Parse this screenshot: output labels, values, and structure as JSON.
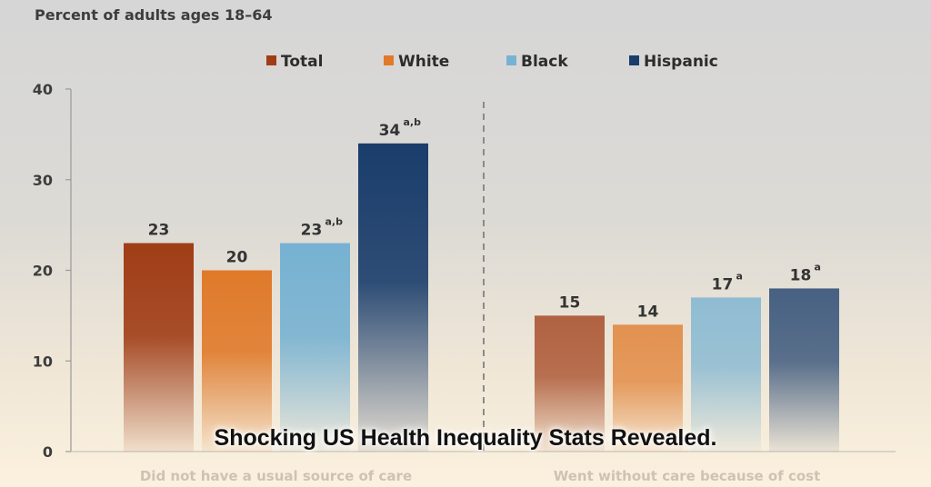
{
  "caption": "Shocking US Health Inequality Stats Revealed.",
  "chart_data": {
    "type": "bar",
    "ylabel": "Percent of adults ages 18–64",
    "ylim": [
      0,
      40
    ],
    "yticks": [
      0,
      10,
      20,
      30,
      40
    ],
    "categories": [
      "Did not have a usual source of care",
      "Went without care because of cost"
    ],
    "series": [
      {
        "name": "Total",
        "color": "#a03d16",
        "values": [
          23,
          15
        ],
        "notes": [
          "",
          ""
        ]
      },
      {
        "name": "White",
        "color": "#e07a2a",
        "values": [
          20,
          14
        ],
        "notes": [
          "",
          ""
        ]
      },
      {
        "name": "Black",
        "color": "#77b2d2",
        "values": [
          23,
          17
        ],
        "notes": [
          "a,b",
          "a"
        ]
      },
      {
        "name": "Hispanic",
        "color": "#1a3d6b",
        "values": [
          34,
          18
        ],
        "notes": [
          "a,b",
          "a"
        ]
      }
    ],
    "legend_position": "top",
    "grid": false
  }
}
